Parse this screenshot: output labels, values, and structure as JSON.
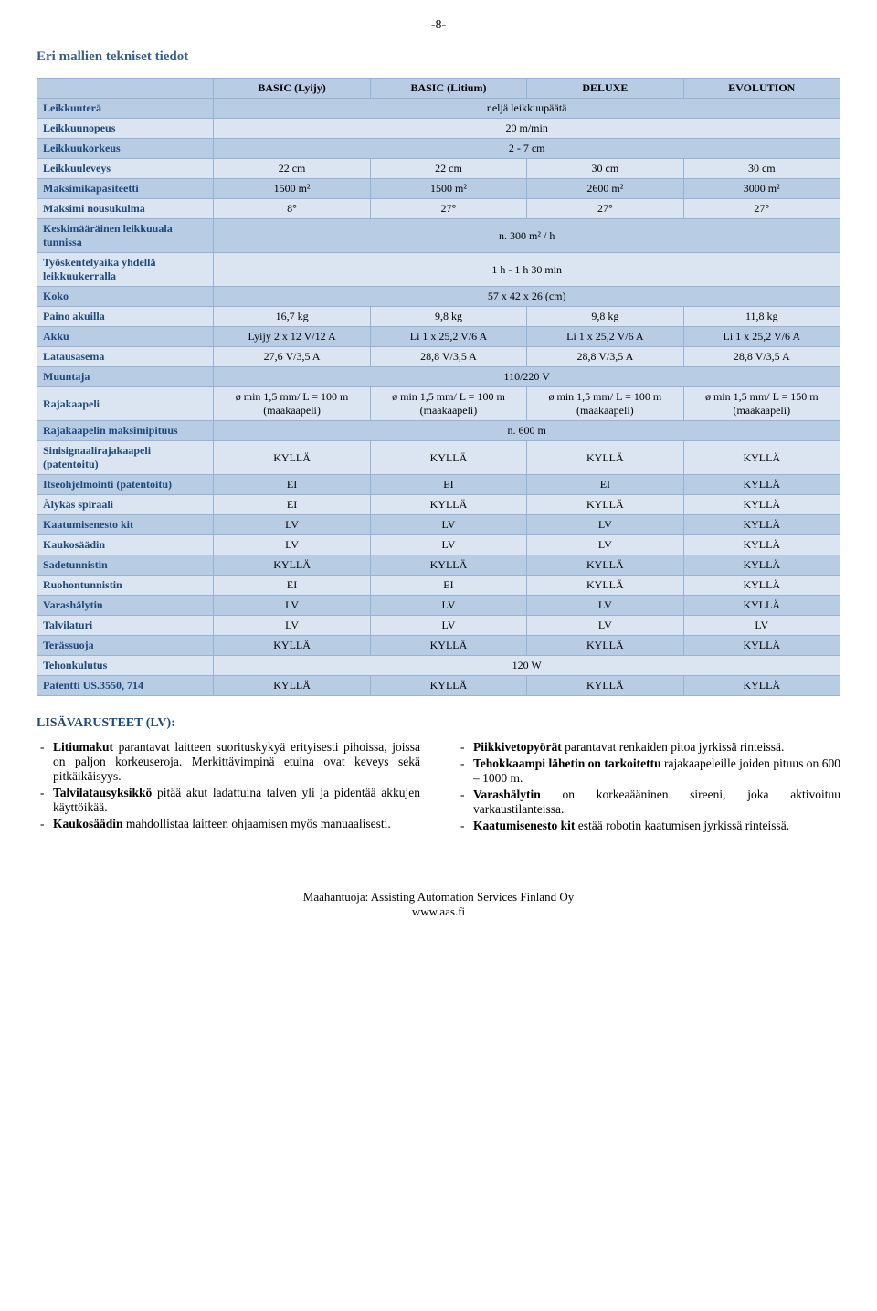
{
  "pageNumber": "-8-",
  "title": "Eri mallien tekniset tiedot",
  "columns": [
    "BASIC (Lyijy)",
    "BASIC (Litium)",
    "DELUXE",
    "EVOLUTION"
  ],
  "rows": [
    {
      "label": "Leikkuuterä",
      "span": true,
      "value": "neljä leikkuupäätä",
      "dark": true
    },
    {
      "label": "Leikkuunopeus",
      "span": true,
      "value": "20 m/min",
      "dark": false
    },
    {
      "label": "Leikkuukorkeus",
      "span": true,
      "value": "2 - 7 cm",
      "dark": true
    },
    {
      "label": "Leikkuuleveys",
      "cells": [
        "22 cm",
        "22 cm",
        "30 cm",
        "30 cm"
      ],
      "dark": false
    },
    {
      "label": "Maksimikapasiteetti",
      "cells": [
        "1500 m²",
        "1500 m²",
        "2600 m²",
        "3000 m²"
      ],
      "dark": true
    },
    {
      "label": "Maksimi nousukulma",
      "cells": [
        "8°",
        "27°",
        "27°",
        "27°"
      ],
      "dark": false
    },
    {
      "label": "Keskimääräinen leikkuuala tunnissa",
      "span": true,
      "value": "n. 300 m² / h",
      "dark": true
    },
    {
      "label": "Työskentelyaika yhdellä leikkuukerralla",
      "span": true,
      "value": "1 h - 1 h 30 min",
      "dark": false
    },
    {
      "label": "Koko",
      "span": true,
      "value": "57 x 42 x 26 (cm)",
      "dark": true
    },
    {
      "label": "Paino akuilla",
      "cells": [
        "16,7 kg",
        "9,8 kg",
        "9,8 kg",
        "11,8 kg"
      ],
      "dark": false
    },
    {
      "label": "Akku",
      "cells": [
        "Lyijy 2 x 12 V/12 A",
        "Li 1 x 25,2 V/6 A",
        "Li 1 x 25,2 V/6 A",
        "Li 1 x 25,2 V/6 A"
      ],
      "dark": true
    },
    {
      "label": "Latausasema",
      "cells": [
        "27,6 V/3,5 A",
        "28,8 V/3,5 A",
        "28,8 V/3,5 A",
        "28,8 V/3,5 A"
      ],
      "dark": false
    },
    {
      "label": "Muuntaja",
      "span": true,
      "value": "110/220 V",
      "dark": true
    },
    {
      "label": "Rajakaapeli",
      "cells": [
        "ø min 1,5 mm/ L = 100 m (maakaapeli)",
        "ø min 1,5 mm/ L = 100 m (maakaapeli)",
        "ø min 1,5 mm/ L = 100 m (maakaapeli)",
        "ø min 1,5 mm/ L = 150 m (maakaapeli)"
      ],
      "dark": false
    },
    {
      "label": "Rajakaapelin maksimipituus",
      "span": true,
      "value": "n. 600 m",
      "dark": true
    },
    {
      "label": "Sinisignaalirajakaapeli (patentoitu)",
      "cells": [
        "KYLLÄ",
        "KYLLÄ",
        "KYLLÄ",
        "KYLLÄ"
      ],
      "dark": false
    },
    {
      "label": "Itseohjelmointi (patentoitu)",
      "cells": [
        "EI",
        "EI",
        "EI",
        "KYLLÄ"
      ],
      "dark": true
    },
    {
      "label": "Älykäs spiraali",
      "cells": [
        "EI",
        "KYLLÄ",
        "KYLLÄ",
        "KYLLÄ"
      ],
      "dark": false
    },
    {
      "label": "Kaatumisenesto kit",
      "cells": [
        "LV",
        "LV",
        "LV",
        "KYLLÄ"
      ],
      "dark": true
    },
    {
      "label": "Kaukosäädin",
      "cells": [
        "LV",
        "LV",
        "LV",
        "KYLLÄ"
      ],
      "dark": false
    },
    {
      "label": "Sadetunnistin",
      "cells": [
        "KYLLÄ",
        "KYLLÄ",
        "KYLLÄ",
        "KYLLÄ"
      ],
      "dark": true
    },
    {
      "label": "Ruohontunnistin",
      "cells": [
        "EI",
        "EI",
        "KYLLÄ",
        "KYLLÄ"
      ],
      "dark": false
    },
    {
      "label": "Varashälytin",
      "cells": [
        "LV",
        "LV",
        "LV",
        "KYLLÄ"
      ],
      "dark": true
    },
    {
      "label": "Talvilaturi",
      "cells": [
        "LV",
        "LV",
        "LV",
        "LV"
      ],
      "dark": false
    },
    {
      "label": "Terässuoja",
      "cells": [
        "KYLLÄ",
        "KYLLÄ",
        "KYLLÄ",
        "KYLLÄ"
      ],
      "dark": true
    },
    {
      "label": "Tehonkulutus",
      "span": true,
      "value": "120 W",
      "dark": false
    },
    {
      "label": "Patentti  US.3550, 714",
      "cells": [
        "KYLLÄ",
        "KYLLÄ",
        "KYLLÄ",
        "KYLLÄ"
      ],
      "dark": true
    }
  ],
  "accessoriesHeading": "LISÄVARUSTEET (LV):",
  "leftItems": [
    "<b>Litiumakut</b> parantavat laitteen suorituskykyä erityisesti pihoissa, joissa on paljon korkeuseroja. Merkittävimpinä etuina ovat keveys sekä pitkäikäisyys.",
    "<b>Talvilatausyksikkö</b> pitää akut ladattuina talven yli ja pidentää akkujen käyttöikää.",
    "<b>Kaukosäädin</b> mahdollistaa laitteen ohjaamisen myös manuaalisesti."
  ],
  "rightItems": [
    "<b>Piikkivetopyörät</b> parantavat renkaiden pitoa jyrkissä rinteissä.",
    "<b>Tehokkaampi lähetin on tarkoitettu</b> rajakaapeleille joiden pituus on 600 – 1000 m.",
    "<b>Varashälytin</b> on korkeaääninen sireeni, joka aktivoituu varkaustilanteissa.",
    "<b>Kaatumisenesto kit</b> estää robotin kaatumisen jyrkissä rinteissä."
  ],
  "footer1": "Maahantuoja: Assisting Automation Services Finland Oy",
  "footer2": "www.aas.fi"
}
